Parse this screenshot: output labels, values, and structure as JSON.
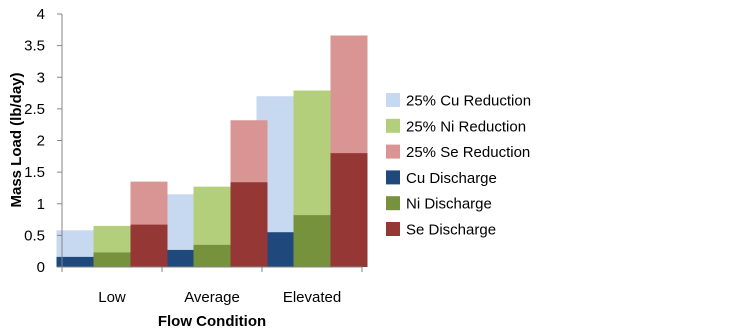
{
  "chart_data": {
    "type": "bar",
    "stacking": "overlay",
    "title": "",
    "xlabel": "Flow Condition",
    "ylabel": "Mass Load (lb/day)",
    "ylim": [
      0,
      4
    ],
    "yticks": [
      "0",
      "0.5",
      "1",
      "1.5",
      "2",
      "2.5",
      "3",
      "3.5",
      "4"
    ],
    "grid": false,
    "legend_position": "right",
    "categories": [
      "Low",
      "Average",
      "Elevated"
    ],
    "series": [
      {
        "name": "25% Cu Reduction",
        "color": "#c6d9f1",
        "group": "Cu",
        "layer": "back",
        "values": [
          0.58,
          1.15,
          2.7
        ]
      },
      {
        "name": "25% Ni Reduction",
        "color": "#b3cf7c",
        "group": "Ni",
        "layer": "back",
        "values": [
          0.65,
          1.27,
          2.79
        ]
      },
      {
        "name": "25% Se Reduction",
        "color": "#d99594",
        "group": "Se",
        "layer": "back",
        "values": [
          1.35,
          2.32,
          3.66
        ]
      },
      {
        "name": "Cu Discharge",
        "color": "#1f497d",
        "group": "Cu",
        "layer": "front",
        "values": [
          0.16,
          0.27,
          0.55
        ]
      },
      {
        "name": "Ni Discharge",
        "color": "#76923c",
        "group": "Ni",
        "layer": "front",
        "values": [
          0.23,
          0.35,
          0.82
        ]
      },
      {
        "name": "Se Discharge",
        "color": "#953735",
        "group": "Se",
        "layer": "front",
        "values": [
          0.67,
          1.34,
          1.8
        ]
      }
    ]
  }
}
